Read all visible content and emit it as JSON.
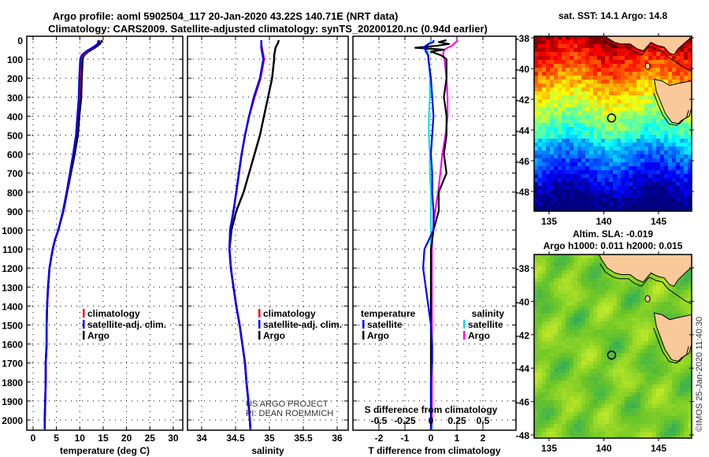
{
  "title_line1": "Argo profile: aoml 5902504_117 20-Jan-2020 43.22S 140.71E (NRT data)",
  "title_line2": "Climatology: CARS2009. Satellite-adjusted climatology: synTS_20200120.nc (0.94d earlier)",
  "credit_line1": "US ARGO PROJECT",
  "credit_line2": "PI: DEAN ROEMMICH",
  "copyright": "©IMOS 25-Jan-2020 11:40:30",
  "colors": {
    "climatology": "#ff0000",
    "satellite": "#0000ff",
    "argo": "#000000",
    "sal_satellite": "#00e5e5",
    "sal_argo": "#ff00ff",
    "land": "#f9c99a"
  },
  "chart_data": [
    {
      "type": "line",
      "id": "temperature",
      "xlabel": "temperature (deg C)",
      "xlim": [
        -1.3,
        32
      ],
      "xticks": [
        "0",
        "5",
        "10",
        "15",
        "20",
        "25",
        "30"
      ],
      "xtick_values": [
        0,
        5,
        10,
        15,
        20,
        25,
        30
      ],
      "ylim": [
        -20,
        2054
      ],
      "yticks": [
        "0",
        "100",
        "200",
        "300",
        "400",
        "500",
        "600",
        "700",
        "800",
        "900",
        "1000",
        "1100",
        "1200",
        "1300",
        "1400",
        "1500",
        "1600",
        "1700",
        "1800",
        "1900",
        "2000"
      ],
      "depth": [
        0,
        20,
        40,
        60,
        80,
        100,
        200,
        300,
        400,
        500,
        600,
        700,
        800,
        900,
        1000,
        1050,
        1100,
        1200,
        1300,
        1400,
        1500,
        1600,
        1700,
        1800,
        1900,
        2000,
        2050
      ],
      "legend": [
        "climatology",
        "satellite-adj. clim.",
        "Argo"
      ],
      "series": [
        {
          "name": "climatology",
          "values": [
            14.0,
            13.8,
            12.8,
            11.5,
            10.6,
            10.2,
            10.0,
            9.9,
            9.5,
            9.2,
            8.6,
            7.9,
            7.2,
            6.4,
            5.4,
            4.7,
            4.2,
            3.5,
            3.2,
            3.0,
            2.9,
            2.9,
            2.7,
            2.7,
            2.6,
            2.5,
            2.5
          ]
        },
        {
          "name": "satellite-adj. clim.",
          "values": [
            14.2,
            13.9,
            12.7,
            11.3,
            10.4,
            10.1,
            9.9,
            9.8,
            9.5,
            9.2,
            8.6,
            7.9,
            7.2,
            6.4,
            5.4,
            4.7,
            4.2,
            3.5,
            3.2,
            3.0,
            2.9,
            2.9,
            2.7,
            2.7,
            2.6,
            2.5,
            2.5
          ]
        },
        {
          "name": "Argo",
          "values": [
            14.8,
            14.3,
            13.2,
            11.8,
            10.9,
            10.6,
            10.4,
            10.3,
            9.9,
            9.6,
            8.9,
            8.1,
            7.3,
            6.5,
            5.4,
            4.7,
            4.2,
            3.5,
            3.2,
            3.0,
            2.9,
            2.9,
            2.7,
            2.7,
            2.6,
            2.5,
            2.5
          ]
        }
      ]
    },
    {
      "type": "line",
      "id": "salinity",
      "xlabel": "salinity",
      "xlim": [
        33.79,
        36.14
      ],
      "xticks": [
        "34",
        "34.5",
        "35",
        "35.5",
        "36"
      ],
      "xtick_values": [
        34,
        34.5,
        35,
        35.5,
        36
      ],
      "ylim": [
        -20,
        2054
      ],
      "depth": [
        0,
        20,
        40,
        60,
        80,
        100,
        200,
        300,
        400,
        500,
        600,
        700,
        800,
        900,
        1000,
        1100,
        1200,
        1300,
        1400,
        1500,
        1600,
        1700,
        1800,
        1900,
        2000,
        2050
      ],
      "legend": [
        "climatology",
        "satellite-adj. clim.",
        "Argo"
      ],
      "series": [
        {
          "name": "climatology",
          "values": [
            34.88,
            34.88,
            34.89,
            34.9,
            34.91,
            34.92,
            34.87,
            34.78,
            34.7,
            34.64,
            34.59,
            34.55,
            34.51,
            34.47,
            34.42,
            34.41,
            34.43,
            34.47,
            34.51,
            34.56,
            34.6,
            34.64,
            34.66,
            34.69,
            34.71,
            34.72
          ]
        },
        {
          "name": "satellite-adj. clim.",
          "values": [
            34.88,
            34.88,
            34.88,
            34.89,
            34.9,
            34.91,
            34.86,
            34.77,
            34.7,
            34.64,
            34.59,
            34.55,
            34.51,
            34.47,
            34.42,
            34.41,
            34.43,
            34.47,
            34.51,
            34.56,
            34.6,
            34.64,
            34.66,
            34.69,
            34.71,
            34.72
          ]
        },
        {
          "name": "Argo",
          "values": [
            35.14,
            35.12,
            35.09,
            35.08,
            35.07,
            35.07,
            35.04,
            34.98,
            34.92,
            34.86,
            34.78,
            34.7,
            34.62,
            34.51,
            34.44,
            34.41,
            34.43,
            34.47,
            34.51,
            34.56,
            34.6,
            34.64,
            34.66,
            34.69,
            34.71,
            34.72
          ]
        }
      ]
    },
    {
      "type": "line",
      "id": "difference",
      "xlabel": "T difference from climatology",
      "xlabel_s": "S difference from climatology",
      "xlim": [
        -2.99,
        3.27
      ],
      "xticks": [
        "-2",
        "-1",
        "0",
        "1",
        "2"
      ],
      "xtick_values": [
        -2,
        -1,
        0,
        1,
        2
      ],
      "s_xticks": [
        "-0.5",
        "-0.25",
        "0",
        "0.25",
        "0.5"
      ],
      "s_xtick_values": [
        -0.5,
        -0.25,
        0,
        0.25,
        0.5
      ],
      "ylim": [
        -20,
        2054
      ],
      "depth": [
        0,
        10,
        20,
        30,
        40,
        50,
        60,
        80,
        100,
        200,
        300,
        400,
        500,
        600,
        700,
        800,
        900,
        1000,
        1100,
        1200,
        1300,
        1400,
        1500,
        1600,
        1700,
        1800,
        1900,
        2000,
        2050
      ],
      "legend_t_title": "temperature",
      "legend_s_title": "salinity",
      "legend_t": [
        "satellite",
        "Argo"
      ],
      "legend_s": [
        "satellite",
        "Argo"
      ],
      "series": [
        {
          "name": "T satellite",
          "axis": "T",
          "values": [
            0.1,
            0.1,
            -0.1,
            -0.2,
            -0.3,
            -0.2,
            -0.2,
            -0.1,
            -0.1,
            0.0,
            0.05,
            0.1,
            0.05,
            0.0,
            0.05,
            0.05,
            0.1,
            0.1,
            -0.25,
            -0.3,
            -0.2,
            -0.1,
            0.0,
            0.05,
            0.05,
            0.0,
            0.0,
            0.0,
            0.0
          ]
        },
        {
          "name": "T Argo",
          "axis": "T",
          "values": [
            0.6,
            0.3,
            0.7,
            0.2,
            -0.6,
            0.5,
            0.0,
            0.4,
            0.6,
            0.6,
            0.5,
            0.6,
            0.6,
            0.5,
            0.6,
            0.3,
            0.3,
            0.1,
            0.0,
            0.0,
            0.0,
            0.0,
            0.0,
            0.0,
            0.0,
            0.0,
            0.0,
            0.0,
            0.0
          ]
        },
        {
          "name": "S satellite",
          "axis": "S",
          "values": [
            0.0,
            0.0,
            -0.02,
            -0.03,
            -0.03,
            -0.04,
            -0.03,
            -0.03,
            -0.02,
            -0.01,
            -0.01,
            -0.02,
            -0.02,
            -0.01,
            -0.01,
            0.0,
            0.0,
            0.0,
            0.0,
            0.0,
            0.0,
            0.0,
            0.0,
            0.0,
            0.0,
            0.0,
            0.0,
            0.0,
            0.01
          ]
        },
        {
          "name": "S Argo",
          "axis": "S",
          "values": [
            0.26,
            0.24,
            0.22,
            0.2,
            0.16,
            0.13,
            0.12,
            0.12,
            0.13,
            0.15,
            0.16,
            0.16,
            0.14,
            0.11,
            0.09,
            0.07,
            0.04,
            0.02,
            0.01,
            0.01,
            0.01,
            0.01,
            0.01,
            0.01,
            0.01,
            0.01,
            0.01,
            0.01,
            0.01
          ]
        }
      ]
    },
    {
      "type": "heatmap",
      "id": "sst_map",
      "title": "sat. SST: 14.1 Argo: 14.8",
      "xticks": [
        "135",
        "140",
        "145"
      ],
      "xtick_values": [
        135,
        140,
        145
      ],
      "yticks": [
        "-38",
        "-40",
        "-42",
        "-44",
        "-46",
        "-48"
      ],
      "ytick_values": [
        -38,
        -40,
        -42,
        -44,
        -46,
        -48
      ],
      "float_position": {
        "lon": 140.71,
        "lat": -43.22
      },
      "value_range": [
        8,
        20
      ]
    },
    {
      "type": "heatmap",
      "id": "sla_map",
      "title_line1": "Altim. SLA: -0.019",
      "title_line2": "Argo h1000: 0.011 h2000: 0.015",
      "xticks": [
        "135",
        "140",
        "145"
      ],
      "xtick_values": [
        135,
        140,
        145
      ],
      "yticks": [
        "-38",
        "-40",
        "-42",
        "-44",
        "-46",
        "-48"
      ],
      "ytick_values": [
        -38,
        -40,
        -42,
        -44,
        -46,
        -48
      ],
      "float_position": {
        "lon": 140.71,
        "lat": -43.22
      }
    }
  ]
}
